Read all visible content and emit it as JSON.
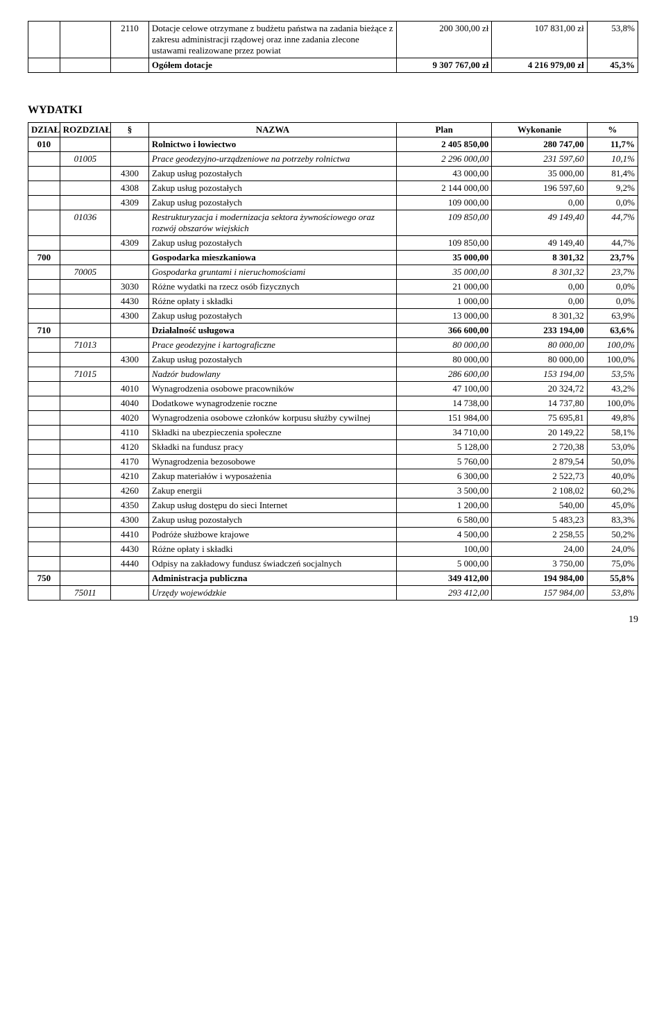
{
  "top_table": {
    "rows": [
      {
        "par": "2110",
        "naz": "Dotacje celowe otrzymane z budżetu państwa na zadania bieżące z zakresu administracji rządowej oraz inne zadania zlecone ustawami realizowane przez powiat",
        "plan": "200 300,00 zł",
        "wyk": "107 831,00 zł",
        "pct": "53,8%"
      },
      {
        "naz": "Ogółem dotacje",
        "plan": "9 307 767,00 zł",
        "wyk": "4 216 979,00 zł",
        "pct": "45,3%",
        "bold": true
      }
    ]
  },
  "section_title": "WYDATKI",
  "main_table": {
    "headers": {
      "dz": "DZIAŁ",
      "roz": "ROZDZIAŁ",
      "par": "§",
      "naz": "NAZWA",
      "plan": "Plan",
      "wyk": "Wykonanie",
      "pct": "%"
    },
    "rows": [
      {
        "dz": "010",
        "naz": "Rolnictwo i łowiectwo",
        "plan": "2 405 850,00",
        "wyk": "280 747,00",
        "pct": "11,7%",
        "bold": true
      },
      {
        "roz": "01005",
        "naz": "Prace geodezyjno-urządzeniowe na potrzeby rolnictwa",
        "plan": "2 296 000,00",
        "wyk": "231 597,60",
        "pct": "10,1%",
        "italic": true
      },
      {
        "par": "4300",
        "naz": "Zakup usług pozostałych",
        "plan": "43 000,00",
        "wyk": "35 000,00",
        "pct": "81,4%"
      },
      {
        "par": "4308",
        "naz": "Zakup usług pozostałych",
        "plan": "2 144 000,00",
        "wyk": "196 597,60",
        "pct": "9,2%"
      },
      {
        "par": "4309",
        "naz": "Zakup usług pozostałych",
        "plan": "109 000,00",
        "wyk": "0,00",
        "pct": "0,0%"
      },
      {
        "roz": "01036",
        "naz": "Restrukturyzacja i modernizacja sektora żywnościowego oraz rozwój obszarów wiejskich",
        "plan": "109 850,00",
        "wyk": "49 149,40",
        "pct": "44,7%",
        "italic": true
      },
      {
        "par": "4309",
        "naz": "Zakup usług pozostałych",
        "plan": "109 850,00",
        "wyk": "49 149,40",
        "pct": "44,7%"
      },
      {
        "dz": "700",
        "naz": "Gospodarka mieszkaniowa",
        "plan": "35 000,00",
        "wyk": "8 301,32",
        "pct": "23,7%",
        "bold": true
      },
      {
        "roz": "70005",
        "naz": "Gospodarka gruntami i nieruchomościami",
        "plan": "35 000,00",
        "wyk": "8 301,32",
        "pct": "23,7%",
        "italic": true
      },
      {
        "par": "3030",
        "naz": "Różne wydatki na rzecz osób fizycznych",
        "plan": "21 000,00",
        "wyk": "0,00",
        "pct": "0,0%"
      },
      {
        "par": "4430",
        "naz": "Różne opłaty i składki",
        "plan": "1 000,00",
        "wyk": "0,00",
        "pct": "0,0%"
      },
      {
        "par": "4300",
        "naz": "Zakup usług pozostałych",
        "plan": "13 000,00",
        "wyk": "8 301,32",
        "pct": "63,9%"
      },
      {
        "dz": "710",
        "naz": "Działalność usługowa",
        "plan": "366 600,00",
        "wyk": "233 194,00",
        "pct": "63,6%",
        "bold": true
      },
      {
        "roz": "71013",
        "naz": "Prace geodezyjne i kartograficzne",
        "plan": "80 000,00",
        "wyk": "80 000,00",
        "pct": "100,0%",
        "italic": true
      },
      {
        "par": "4300",
        "naz": "Zakup usług pozostałych",
        "plan": "80 000,00",
        "wyk": "80 000,00",
        "pct": "100,0%"
      },
      {
        "roz": "71015",
        "naz": "Nadzór budowlany",
        "plan": "286 600,00",
        "wyk": "153 194,00",
        "pct": "53,5%",
        "italic": true
      },
      {
        "par": "4010",
        "naz": "Wynagrodzenia osobowe pracowników",
        "plan": "47 100,00",
        "wyk": "20 324,72",
        "pct": "43,2%"
      },
      {
        "par": "4040",
        "naz": "Dodatkowe wynagrodzenie roczne",
        "plan": "14 738,00",
        "wyk": "14 737,80",
        "pct": "100,0%"
      },
      {
        "par": "4020",
        "naz": "Wynagrodzenia osobowe członków korpusu służby cywilnej",
        "plan": "151 984,00",
        "wyk": "75 695,81",
        "pct": "49,8%"
      },
      {
        "par": "4110",
        "naz": "Składki na ubezpieczenia społeczne",
        "plan": "34 710,00",
        "wyk": "20 149,22",
        "pct": "58,1%"
      },
      {
        "par": "4120",
        "naz": "Składki na fundusz pracy",
        "plan": "5 128,00",
        "wyk": "2 720,38",
        "pct": "53,0%"
      },
      {
        "par": "4170",
        "naz": "Wynagrodzenia bezosobowe",
        "plan": "5 760,00",
        "wyk": "2 879,54",
        "pct": "50,0%"
      },
      {
        "par": "4210",
        "naz": "Zakup materiałów  i wyposażenia",
        "plan": "6 300,00",
        "wyk": "2 522,73",
        "pct": "40,0%"
      },
      {
        "par": "4260",
        "naz": "Zakup energii",
        "plan": "3 500,00",
        "wyk": "2 108,02",
        "pct": "60,2%"
      },
      {
        "par": "4350",
        "naz": "Zakup usług dostępu do sieci Internet",
        "plan": "1 200,00",
        "wyk": "540,00",
        "pct": "45,0%"
      },
      {
        "par": "4300",
        "naz": "Zakup usług pozostałych",
        "plan": "6 580,00",
        "wyk": "5 483,23",
        "pct": "83,3%"
      },
      {
        "par": "4410",
        "naz": "Podróże służbowe krajowe",
        "plan": "4 500,00",
        "wyk": "2 258,55",
        "pct": "50,2%"
      },
      {
        "par": "4430",
        "naz": "Różne opłaty i składki",
        "plan": "100,00",
        "wyk": "24,00",
        "pct": "24,0%"
      },
      {
        "par": "4440",
        "naz": "Odpisy na zakładowy fundusz świadczeń socjalnych",
        "plan": "5 000,00",
        "wyk": "3 750,00",
        "pct": "75,0%"
      },
      {
        "dz": "750",
        "naz": "Administracja publiczna",
        "plan": "349 412,00",
        "wyk": "194 984,00",
        "pct": "55,8%",
        "bold": true
      },
      {
        "roz": "75011",
        "naz": "Urzędy wojewódzkie",
        "plan": "293 412,00",
        "wyk": "157 984,00",
        "pct": "53,8%",
        "italic": true
      }
    ]
  },
  "page_number": "19"
}
